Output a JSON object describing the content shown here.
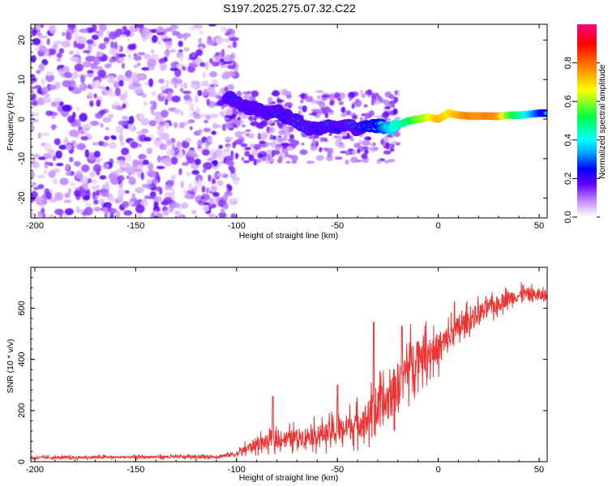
{
  "title": "S197.2025.275.07.32.C22",
  "chart_data": [
    {
      "type": "heatmap",
      "id": "spectrogram",
      "xlabel": "Height of straight line (km)",
      "ylabel": "Frequency (Hz)",
      "xlim": [
        -202,
        54
      ],
      "ylim": [
        -25,
        24
      ],
      "xticks": [
        -200,
        -150,
        -100,
        -50,
        0,
        50
      ],
      "yticks": [
        -20,
        -10,
        0,
        10,
        20
      ],
      "colorbar": {
        "label": "Normalized spectral amplitude",
        "range": [
          0,
          1
        ],
        "ticks": [
          "0.0",
          "0.2",
          "0.4",
          "0.6",
          "0.8"
        ],
        "colormap": [
          "#ffffff",
          "#e8ccff",
          "#b070ff",
          "#6600ff",
          "#0000ff",
          "#00a0ff",
          "#00ffff",
          "#00ff44",
          "#ffff00",
          "#ff7f00",
          "#ff0000",
          "#ff0080"
        ]
      },
      "tone_track": [
        {
          "x": -105,
          "y": 5.5,
          "value": 0.25
        },
        {
          "x": -100,
          "y": 4.5,
          "value": 0.3
        },
        {
          "x": -95,
          "y": 3.0,
          "value": 0.22
        },
        {
          "x": -90,
          "y": 2.5,
          "value": 0.2
        },
        {
          "x": -85,
          "y": 1.5,
          "value": 0.2
        },
        {
          "x": -80,
          "y": 2.0,
          "value": 0.3
        },
        {
          "x": -75,
          "y": 0.5,
          "value": 0.25
        },
        {
          "x": -70,
          "y": -0.5,
          "value": 0.3
        },
        {
          "x": -65,
          "y": -2.0,
          "value": 0.3
        },
        {
          "x": -60,
          "y": -2.5,
          "value": 0.25
        },
        {
          "x": -55,
          "y": -1.5,
          "value": 0.3
        },
        {
          "x": -50,
          "y": -2.5,
          "value": 0.25
        },
        {
          "x": -45,
          "y": -1.0,
          "value": 0.3
        },
        {
          "x": -40,
          "y": -2.5,
          "value": 0.3
        },
        {
          "x": -35,
          "y": -1.5,
          "value": 0.35
        },
        {
          "x": -30,
          "y": -1.5,
          "value": 0.35
        },
        {
          "x": -25,
          "y": -2.5,
          "value": 0.45
        },
        {
          "x": -20,
          "y": -1.5,
          "value": 0.55
        },
        {
          "x": -15,
          "y": -0.5,
          "value": 0.6
        },
        {
          "x": -10,
          "y": 0.0,
          "value": 0.7
        },
        {
          "x": -5,
          "y": 0.5,
          "value": 0.75
        },
        {
          "x": 0,
          "y": 0.0,
          "value": 0.85
        },
        {
          "x": 5,
          "y": 1.5,
          "value": 0.8
        },
        {
          "x": 10,
          "y": 1.0,
          "value": 0.85
        },
        {
          "x": 15,
          "y": 0.8,
          "value": 0.9
        },
        {
          "x": 20,
          "y": 0.8,
          "value": 0.88
        },
        {
          "x": 25,
          "y": 0.8,
          "value": 0.9
        },
        {
          "x": 30,
          "y": 0.7,
          "value": 0.88
        },
        {
          "x": 35,
          "y": 1.0,
          "value": 0.7
        },
        {
          "x": 40,
          "y": 1.0,
          "value": 0.6
        },
        {
          "x": 45,
          "y": 1.2,
          "value": 0.5
        },
        {
          "x": 50,
          "y": 1.5,
          "value": 0.4
        },
        {
          "x": 54,
          "y": 1.5,
          "value": 0.35
        }
      ],
      "noise_region_x": [
        -202,
        -105
      ]
    },
    {
      "type": "line",
      "id": "snr",
      "xlabel": "Height of straight line (km)",
      "ylabel": "SNR (10 * v/v)",
      "xlim": [
        -202,
        54
      ],
      "ylim": [
        0,
        760
      ],
      "xticks": [
        -200,
        -150,
        -100,
        -50,
        0,
        50
      ],
      "yticks": [
        0,
        200,
        400,
        600
      ],
      "color": "#ee3333",
      "envelope": {
        "x": [
          -202,
          -150,
          -110,
          -100,
          -95,
          -90,
          -80,
          -70,
          -60,
          -50,
          -40,
          -35,
          -30,
          -25,
          -20,
          -15,
          -10,
          -5,
          0,
          5,
          10,
          15,
          20,
          25,
          30,
          35,
          40,
          45,
          50,
          54
        ],
        "mean": [
          15,
          18,
          20,
          30,
          50,
          70,
          85,
          95,
          105,
          120,
          150,
          170,
          200,
          240,
          300,
          370,
          420,
          430,
          440,
          480,
          520,
          550,
          580,
          600,
          620,
          640,
          650,
          655,
          650,
          650
        ],
        "spread": [
          10,
          10,
          12,
          20,
          35,
          50,
          55,
          65,
          75,
          85,
          110,
          130,
          150,
          170,
          180,
          170,
          150,
          130,
          120,
          110,
          95,
          85,
          75,
          70,
          60,
          55,
          50,
          50,
          45,
          45
        ]
      },
      "spikes": [
        {
          "x": -82,
          "y": 255
        },
        {
          "x": -50,
          "y": 300
        },
        {
          "x": -32,
          "y": 545
        },
        {
          "x": -18,
          "y": 530
        },
        {
          "x": 8,
          "y": 625
        },
        {
          "x": 25,
          "y": 620
        },
        {
          "x": 42,
          "y": 690
        }
      ]
    }
  ]
}
